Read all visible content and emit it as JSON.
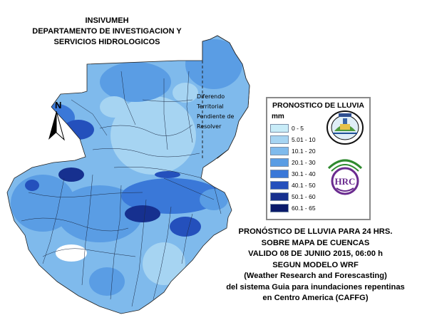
{
  "header": {
    "line1": "INSIVUMEH",
    "line2": "DEPARTAMENTO DE INVESTIGACION Y",
    "line3": "SERVICIOS HIDROLOGICOS"
  },
  "north_arrow": {
    "label": "N"
  },
  "dispute_note": {
    "line1": "Diferendo",
    "line2": "Territorial",
    "line3": "Pendiente de",
    "line4": "Resolver"
  },
  "legend": {
    "title": "PRONOSTICO DE LLUVIA",
    "unit": "mm",
    "items": [
      {
        "label": "0 - 5",
        "color": "#c8ecf8"
      },
      {
        "label": "5.01 - 10",
        "color": "#a6d4f2"
      },
      {
        "label": "10.1 - 20",
        "color": "#7fbaec"
      },
      {
        "label": "20.1 - 30",
        "color": "#5a9de4"
      },
      {
        "label": "30.1 - 40",
        "color": "#3a78d8"
      },
      {
        "label": "40.1 - 50",
        "color": "#2450bc"
      },
      {
        "label": "50.1 - 60",
        "color": "#16308f"
      },
      {
        "label": "60.1 - 65",
        "color": "#0a1a6a"
      }
    ],
    "logo1": {
      "name": "INSIVUMEH",
      "icon": "insivumeh-seal"
    },
    "logo2": {
      "name": "HRC",
      "icon": "hrc-logo"
    }
  },
  "caption": {
    "line1": "PRONÓSTICO DE LLUVIA PARA 24 HRS.",
    "line2": "SOBRE MAPA DE CUENCAS",
    "line3": "VALIDO 08 DE JUNIIO 2015, 06:00 h",
    "line4": "SEGUN MODELO WRF",
    "line5": "(Weather Research and Forescasting)",
    "line6": "del sistema Guia  para inundaciones repentinas",
    "line7": "en Centro America (CAFFG)"
  }
}
